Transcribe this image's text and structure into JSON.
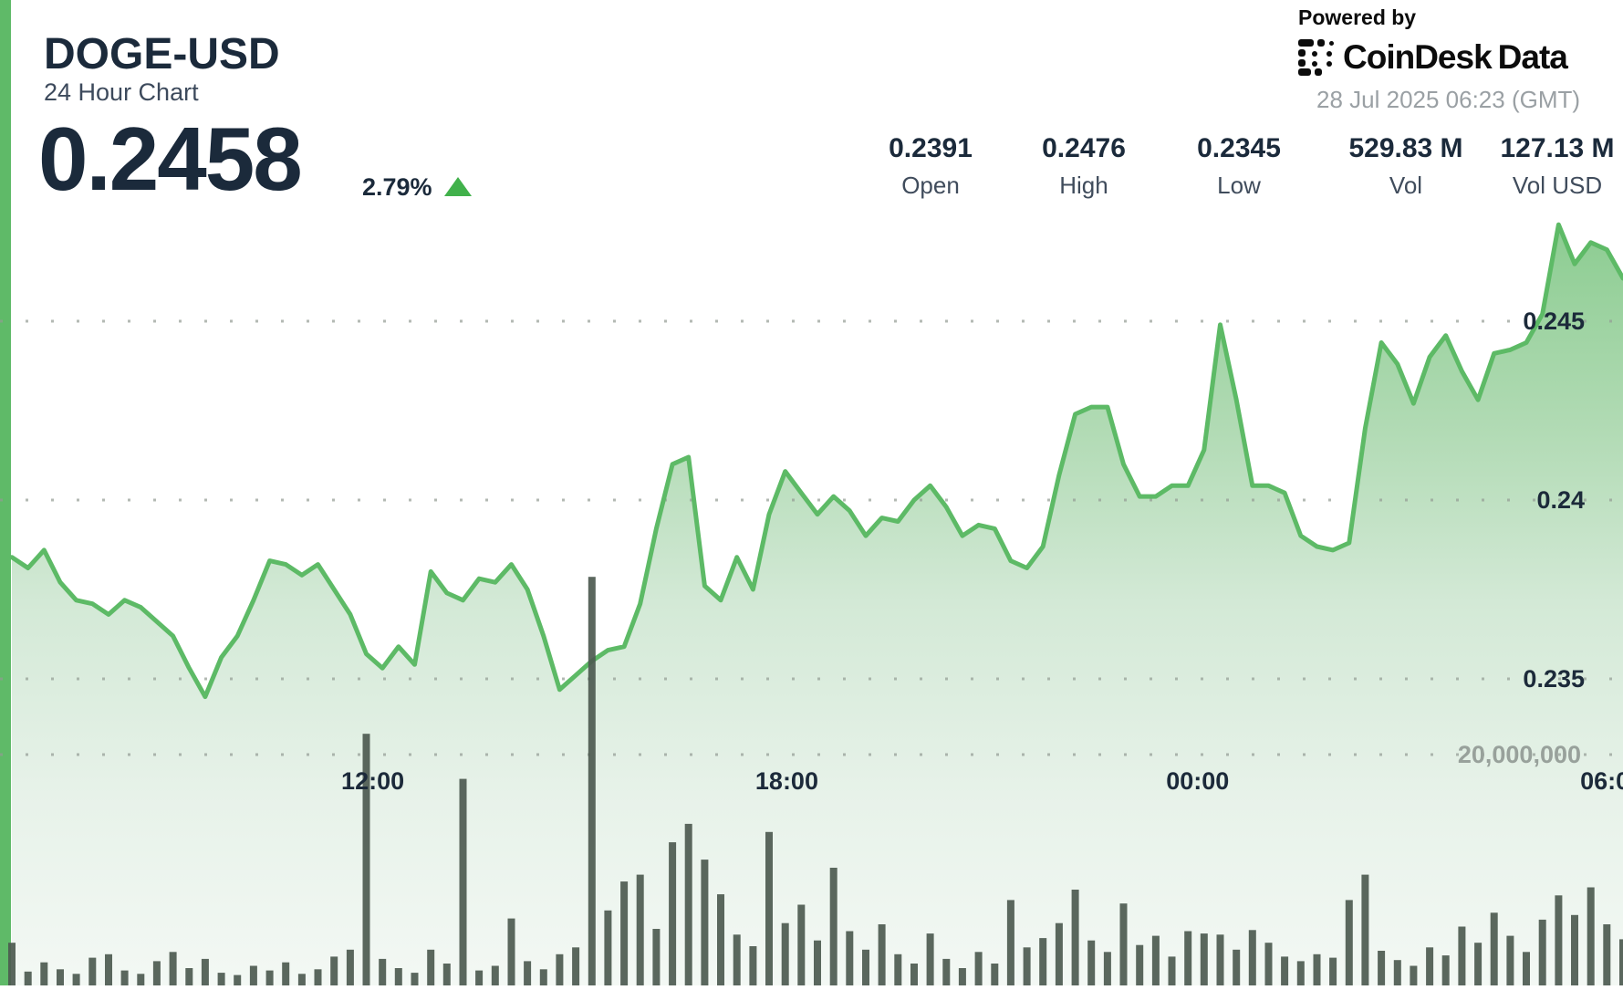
{
  "header": {
    "symbol": "DOGE-USD",
    "subtitle": "24 Hour Chart",
    "price": "0.2458",
    "change_percent": "2.79%",
    "change_direction": "up"
  },
  "provider": {
    "powered_by": "Powered by",
    "brand": "CoinDesk",
    "brand_suffix": "Data",
    "timestamp": "28 Jul 2025 06:23 (GMT)"
  },
  "stats": [
    {
      "value": "0.2391",
      "label": "Open"
    },
    {
      "value": "0.2476",
      "label": "High"
    },
    {
      "value": "0.2345",
      "label": "Low"
    },
    {
      "value": "529.83 M",
      "label": "Vol"
    },
    {
      "value": "127.13 M",
      "label": "Vol USD"
    }
  ],
  "chart_data": {
    "type": "area",
    "title": "DOGE-USD 24 Hour Chart",
    "x_ticks": {
      "labels": [
        "12:00",
        "18:00",
        "00:00",
        "06:00"
      ],
      "fractions": [
        0.224,
        0.481,
        0.736,
        0.993
      ]
    },
    "price_axis": {
      "ticks": [
        0.245,
        0.24,
        0.235
      ],
      "tick_labels": [
        "0.245",
        "0.24",
        "0.235"
      ],
      "visible_range": [
        0.2335,
        0.2487
      ]
    },
    "volume_axis": {
      "tick": 20000000,
      "tick_label": "20,000,000"
    },
    "series": [
      {
        "name": "price",
        "type": "area",
        "values": [
          0.2384,
          0.2381,
          0.2386,
          0.2377,
          0.2372,
          0.2371,
          0.2368,
          0.2372,
          0.237,
          0.2366,
          0.2362,
          0.2353,
          0.2345,
          0.2356,
          0.2362,
          0.2372,
          0.2383,
          0.2382,
          0.2379,
          0.2382,
          0.2375,
          0.2368,
          0.2357,
          0.2353,
          0.2359,
          0.2354,
          0.238,
          0.2374,
          0.2372,
          0.2378,
          0.2377,
          0.2382,
          0.2375,
          0.2362,
          0.2347,
          0.2351,
          0.2355,
          0.2358,
          0.2359,
          0.2371,
          0.2392,
          0.241,
          0.2412,
          0.2376,
          0.2372,
          0.2384,
          0.2375,
          0.2396,
          0.2408,
          0.2402,
          0.2396,
          0.2401,
          0.2397,
          0.239,
          0.2395,
          0.2394,
          0.24,
          0.2404,
          0.2398,
          0.239,
          0.2393,
          0.2392,
          0.2383,
          0.2381,
          0.2387,
          0.2407,
          0.2424,
          0.2426,
          0.2426,
          0.241,
          0.2401,
          0.2401,
          0.2404,
          0.2404,
          0.2414,
          0.2449,
          0.2428,
          0.2404,
          0.2404,
          0.2402,
          0.239,
          0.2387,
          0.2386,
          0.2388,
          0.242,
          0.2444,
          0.2438,
          0.2427,
          0.244,
          0.2446,
          0.2436,
          0.2428,
          0.2441,
          0.2442,
          0.2444,
          0.2452,
          0.2477,
          0.2466,
          0.2472,
          0.247,
          0.2462
        ]
      },
      {
        "name": "volume",
        "type": "bar",
        "unit": "millions",
        "values": [
          3.7,
          1.2,
          2.0,
          1.4,
          1.0,
          2.4,
          2.7,
          1.3,
          1.0,
          2.1,
          2.9,
          1.5,
          2.3,
          1.1,
          0.9,
          1.7,
          1.3,
          2.0,
          1.0,
          1.4,
          2.5,
          3.1,
          21.8,
          2.3,
          1.5,
          1.1,
          3.1,
          1.9,
          17.9,
          1.3,
          1.7,
          5.8,
          2.1,
          1.4,
          2.7,
          3.3,
          35.4,
          6.5,
          9.0,
          9.6,
          4.9,
          12.4,
          14.0,
          10.9,
          7.9,
          4.4,
          3.4,
          13.3,
          5.4,
          7.0,
          3.9,
          10.2,
          4.7,
          3.1,
          5.3,
          2.7,
          1.9,
          4.5,
          2.3,
          1.5,
          2.9,
          1.9,
          7.4,
          3.3,
          4.1,
          5.4,
          8.3,
          3.9,
          2.9,
          7.1,
          3.5,
          4.3,
          2.5,
          4.7,
          4.5,
          4.4,
          3.1,
          4.8,
          3.7,
          2.5,
          2.1,
          2.7,
          2.4,
          7.4,
          9.6,
          3.0,
          2.2,
          1.7,
          3.3,
          2.6,
          5.1,
          3.7,
          6.3,
          4.3,
          2.9,
          5.7,
          7.8,
          6.1,
          8.5,
          5.3,
          4.0
        ]
      }
    ],
    "colors": {
      "line": "#5dba66",
      "area_top": "#8bcc90",
      "area_mid": "#d3e9d6",
      "area_bottom": "#f3f8f4",
      "volume_bar": "#4d5a50",
      "grid_dots": "#939c94",
      "tick_dark": "#1c2a3a",
      "tick_gray": "#98a19b",
      "accent_green": "#41b14b",
      "left_bar": "#5fba68"
    }
  }
}
